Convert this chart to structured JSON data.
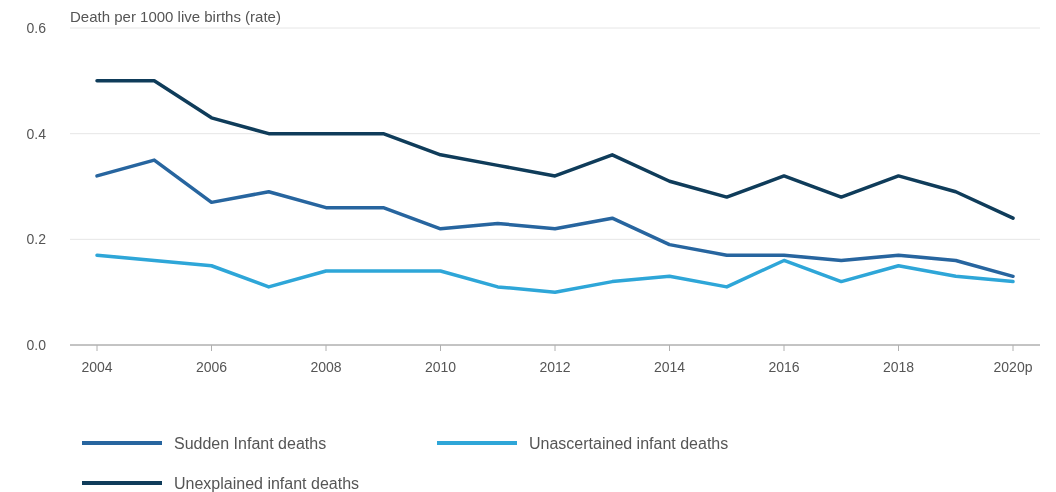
{
  "chart_data": {
    "type": "line",
    "ylabel": "Death per 1000 live births (rate)",
    "categories": [
      "2004",
      null,
      "2006",
      null,
      "2008",
      null,
      "2010",
      null,
      "2012",
      null,
      "2014",
      null,
      "2016",
      null,
      "2018",
      null,
      "2020p"
    ],
    "series": [
      {
        "name": "Sudden Infant deaths",
        "color": "#27659f",
        "values": [
          0.32,
          0.35,
          0.27,
          0.29,
          0.26,
          0.26,
          0.22,
          0.23,
          0.22,
          0.24,
          0.19,
          0.17,
          0.17,
          0.16,
          0.17,
          0.16,
          0.13
        ]
      },
      {
        "name": "Unascertained infant deaths",
        "color": "#2ea6d8",
        "values": [
          0.17,
          0.16,
          0.15,
          0.11,
          0.14,
          0.14,
          0.14,
          0.11,
          0.1,
          0.12,
          0.13,
          0.11,
          0.16,
          0.12,
          0.15,
          0.13,
          0.12
        ]
      },
      {
        "name": "Unexplained infant deaths",
        "color": "#0f3c5a",
        "values": [
          0.5,
          0.5,
          0.43,
          0.4,
          0.4,
          0.4,
          0.36,
          0.34,
          0.32,
          0.36,
          0.31,
          0.28,
          0.32,
          0.28,
          0.32,
          0.29,
          0.24
        ]
      }
    ],
    "ylim": [
      0,
      0.6
    ],
    "yticks": [
      {
        "value": 0,
        "label": "0.0"
      },
      0.2,
      0.4,
      0.6
    ],
    "grid": "y",
    "legend": "bottom",
    "marker": "none",
    "line_style": "solid"
  }
}
